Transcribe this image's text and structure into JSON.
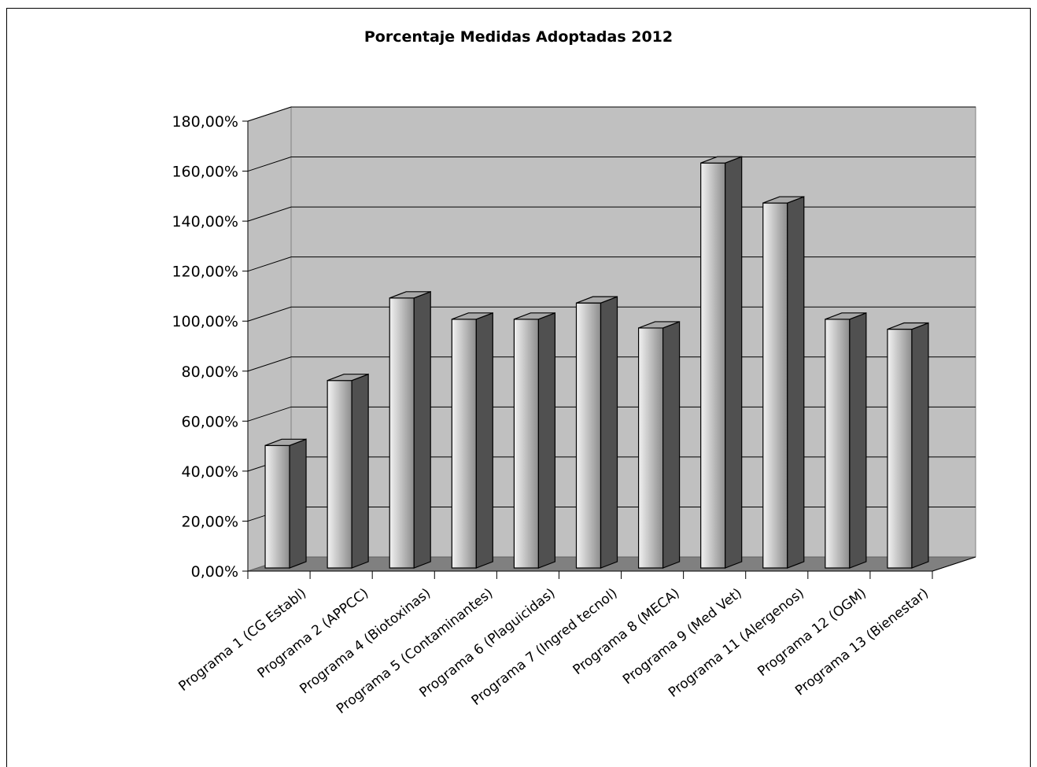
{
  "chart_data": {
    "type": "bar",
    "title": "Porcentaje Medidas Adoptadas 2012",
    "xlabel": "",
    "ylabel": "",
    "ylim": [
      0,
      180
    ],
    "y_ticks": [
      "0,00%",
      "20,00%",
      "40,00%",
      "60,00%",
      "80,00%",
      "100,00%",
      "120,00%",
      "140,00%",
      "160,00%",
      "180,00%"
    ],
    "grid": true,
    "style": "3d-column",
    "categories": [
      "Programa 1 (CG Establ)",
      "Programa 2 (APPCC)",
      "Programa 4 (Biotoxinas)",
      "Programa 5 (Contaminantes)",
      "Programa 6 (Plaguicidas)",
      "Programa 7 (Ingred tecnol)",
      "Programa 8 (MECA)",
      "Programa 9 (Med Vet)",
      "Programa 11 (Alergenos)",
      "Programa 12 (OGM)",
      "Programa 13 (Bienestar)"
    ],
    "values": [
      49,
      75,
      108,
      99.5,
      99.5,
      106,
      96,
      162,
      146,
      99.5,
      95.5
    ],
    "colors": {
      "back_wall": "#c0c0c0",
      "floor": "#808080",
      "bar_side": "#505050",
      "bar_top": "#a8a8a8"
    }
  }
}
